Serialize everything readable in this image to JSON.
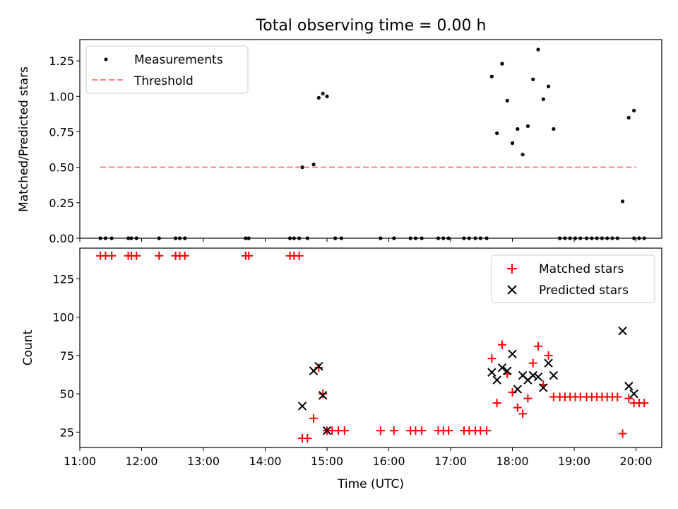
{
  "chart_data": [
    {
      "type": "scatter",
      "title": "Total observing time = 0.00 h",
      "xlabel": "",
      "ylabel": "Matched/Predicted stars",
      "ylim": [
        0,
        1.4
      ],
      "xlim": [
        "11:00",
        "20:25"
      ],
      "y_ticks": [
        "0.00",
        "0.25",
        "0.50",
        "0.75",
        "1.00",
        "1.25"
      ],
      "legend_position": "top-left",
      "series": [
        {
          "name": "Measurements",
          "marker": "dot",
          "color": "#000000",
          "points": [
            [
              "11:20",
              0
            ],
            [
              "11:25",
              0
            ],
            [
              "11:31",
              0
            ],
            [
              "11:47",
              0
            ],
            [
              "11:50",
              0
            ],
            [
              "11:55",
              0
            ],
            [
              "12:17",
              0
            ],
            [
              "12:33",
              0
            ],
            [
              "12:37",
              0
            ],
            [
              "12:42",
              0
            ],
            [
              "13:41",
              0
            ],
            [
              "13:44",
              0
            ],
            [
              "14:24",
              0
            ],
            [
              "14:28",
              0
            ],
            [
              "14:33",
              0
            ],
            [
              "14:36",
              0.5
            ],
            [
              "14:41",
              0
            ],
            [
              "14:47",
              0.52
            ],
            [
              "14:52",
              0.99
            ],
            [
              "14:56",
              1.02
            ],
            [
              "15:00",
              1.0
            ],
            [
              "15:08",
              0
            ],
            [
              "15:14",
              0
            ],
            [
              "15:52",
              0
            ],
            [
              "16:05",
              0
            ],
            [
              "16:21",
              0
            ],
            [
              "16:26",
              0
            ],
            [
              "16:32",
              0
            ],
            [
              "16:48",
              0
            ],
            [
              "16:53",
              0
            ],
            [
              "16:58",
              0
            ],
            [
              "17:13",
              0
            ],
            [
              "17:18",
              0
            ],
            [
              "17:24",
              0
            ],
            [
              "17:29",
              0
            ],
            [
              "17:35",
              0
            ],
            [
              "17:40",
              1.14
            ],
            [
              "17:45",
              0.74
            ],
            [
              "17:50",
              1.23
            ],
            [
              "17:55",
              0.97
            ],
            [
              "18:00",
              0.67
            ],
            [
              "18:05",
              0.77
            ],
            [
              "18:10",
              0.59
            ],
            [
              "18:15",
              0.79
            ],
            [
              "18:20",
              1.12
            ],
            [
              "18:25",
              1.33
            ],
            [
              "18:30",
              0.98
            ],
            [
              "18:35",
              1.07
            ],
            [
              "18:40",
              0.77
            ],
            [
              "18:46",
              0
            ],
            [
              "18:51",
              0
            ],
            [
              "18:56",
              0
            ],
            [
              "19:01",
              0
            ],
            [
              "19:06",
              0
            ],
            [
              "19:12",
              0
            ],
            [
              "19:17",
              0
            ],
            [
              "19:22",
              0
            ],
            [
              "19:27",
              0
            ],
            [
              "19:32",
              0
            ],
            [
              "19:37",
              0
            ],
            [
              "19:42",
              0
            ],
            [
              "19:47",
              0.26
            ],
            [
              "19:53",
              0.85
            ],
            [
              "19:58",
              0.9
            ],
            [
              "19:58",
              0
            ],
            [
              "20:03",
              0
            ],
            [
              "20:08",
              0
            ]
          ]
        },
        {
          "name": "Threshold",
          "marker": "dashed-line",
          "color": "#ff8080",
          "points": [
            [
              "11:20",
              0.5
            ],
            [
              "20:00",
              0.5
            ]
          ]
        }
      ]
    },
    {
      "type": "scatter",
      "title": "",
      "xlabel": "Time (UTC)",
      "ylabel": "Count",
      "ylim": [
        15,
        145
      ],
      "xlim": [
        "11:00",
        "20:25"
      ],
      "x_ticks": [
        "11:00",
        "12:00",
        "13:00",
        "14:00",
        "15:00",
        "16:00",
        "17:00",
        "18:00",
        "19:00",
        "20:00"
      ],
      "y_ticks": [
        "25",
        "50",
        "75",
        "100",
        "125"
      ],
      "legend_position": "top-right",
      "series": [
        {
          "name": "Matched stars",
          "marker": "plus",
          "color": "#ff0000",
          "points": [
            [
              "11:20",
              140
            ],
            [
              "11:25",
              140
            ],
            [
              "11:31",
              140
            ],
            [
              "11:47",
              140
            ],
            [
              "11:50",
              140
            ],
            [
              "11:55",
              140
            ],
            [
              "12:17",
              140
            ],
            [
              "12:33",
              140
            ],
            [
              "12:37",
              140
            ],
            [
              "12:42",
              140
            ],
            [
              "13:41",
              140
            ],
            [
              "13:44",
              140
            ],
            [
              "14:24",
              140
            ],
            [
              "14:28",
              140
            ],
            [
              "14:33",
              140
            ],
            [
              "14:36",
              21
            ],
            [
              "14:41",
              21
            ],
            [
              "14:47",
              34
            ],
            [
              "14:52",
              67
            ],
            [
              "14:56",
              50
            ],
            [
              "15:00",
              26
            ],
            [
              "15:05",
              26
            ],
            [
              "15:11",
              26
            ],
            [
              "15:17",
              26
            ],
            [
              "15:52",
              26
            ],
            [
              "16:05",
              26
            ],
            [
              "16:21",
              26
            ],
            [
              "16:26",
              26
            ],
            [
              "16:32",
              26
            ],
            [
              "16:48",
              26
            ],
            [
              "16:53",
              26
            ],
            [
              "16:58",
              26
            ],
            [
              "17:13",
              26
            ],
            [
              "17:18",
              26
            ],
            [
              "17:24",
              26
            ],
            [
              "17:29",
              26
            ],
            [
              "17:35",
              26
            ],
            [
              "17:40",
              73
            ],
            [
              "17:45",
              44
            ],
            [
              "17:50",
              82
            ],
            [
              "17:55",
              63
            ],
            [
              "18:00",
              51
            ],
            [
              "18:05",
              41
            ],
            [
              "18:10",
              37
            ],
            [
              "18:15",
              47
            ],
            [
              "18:20",
              70
            ],
            [
              "18:25",
              81
            ],
            [
              "18:30",
              56
            ],
            [
              "18:35",
              75
            ],
            [
              "18:40",
              48
            ],
            [
              "18:46",
              48
            ],
            [
              "18:51",
              48
            ],
            [
              "18:56",
              48
            ],
            [
              "19:01",
              48
            ],
            [
              "19:06",
              48
            ],
            [
              "19:12",
              48
            ],
            [
              "19:17",
              48
            ],
            [
              "19:22",
              48
            ],
            [
              "19:27",
              48
            ],
            [
              "19:32",
              48
            ],
            [
              "19:37",
              48
            ],
            [
              "19:42",
              48
            ],
            [
              "19:47",
              24
            ],
            [
              "19:53",
              47
            ],
            [
              "19:58",
              44
            ],
            [
              "20:03",
              44
            ],
            [
              "20:08",
              44
            ]
          ]
        },
        {
          "name": "Predicted stars",
          "marker": "x",
          "color": "#000000",
          "points": [
            [
              "14:36",
              42
            ],
            [
              "14:47",
              65
            ],
            [
              "14:52",
              68
            ],
            [
              "14:56",
              49
            ],
            [
              "15:00",
              26
            ],
            [
              "17:40",
              64
            ],
            [
              "17:45",
              59
            ],
            [
              "17:50",
              67
            ],
            [
              "17:55",
              65
            ],
            [
              "18:00",
              76
            ],
            [
              "18:05",
              53
            ],
            [
              "18:10",
              62
            ],
            [
              "18:15",
              59
            ],
            [
              "18:20",
              62
            ],
            [
              "18:25",
              61
            ],
            [
              "18:30",
              54
            ],
            [
              "18:35",
              70
            ],
            [
              "18:40",
              62
            ],
            [
              "19:47",
              91
            ],
            [
              "19:53",
              55
            ],
            [
              "19:58",
              50
            ]
          ]
        }
      ]
    }
  ]
}
